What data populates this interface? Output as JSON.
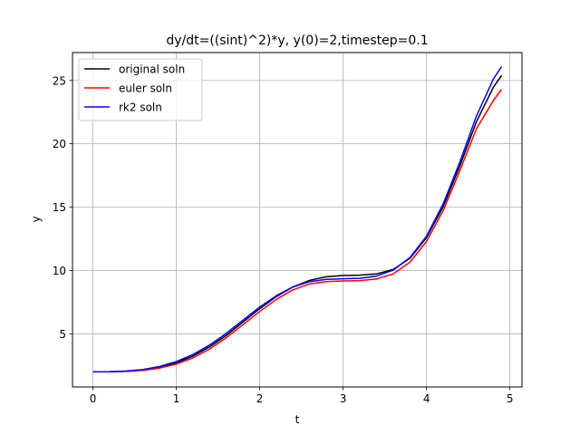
{
  "chart_data": {
    "type": "line",
    "title": "dy/dt=((sint)^2)*y, y(0)=2,timestep=0.1",
    "xlabel": "t",
    "ylabel": "y",
    "xlim": [
      -0.245,
      5.145
    ],
    "ylim": [
      0.8,
      27.2
    ],
    "xticks": [
      0,
      1,
      2,
      3,
      4,
      5
    ],
    "yticks": [
      5,
      10,
      15,
      20,
      25
    ],
    "grid": true,
    "legend_position": "top-left",
    "series": [
      {
        "name": "original soln",
        "color": "#000000",
        "x": [
          0,
          0.2,
          0.4,
          0.6,
          0.8,
          1.0,
          1.2,
          1.4,
          1.6,
          1.8,
          2.0,
          2.2,
          2.4,
          2.6,
          2.8,
          3.0,
          3.2,
          3.4,
          3.6,
          3.8,
          4.0,
          4.2,
          4.4,
          4.6,
          4.8,
          4.9
        ],
        "values": [
          2.0,
          2.0,
          2.04,
          2.14,
          2.36,
          2.71,
          3.24,
          3.97,
          4.88,
          5.93,
          6.98,
          7.94,
          8.7,
          9.22,
          9.5,
          9.6,
          9.63,
          9.72,
          10.07,
          10.95,
          12.58,
          15.04,
          18.25,
          21.75,
          24.45,
          25.4
        ]
      },
      {
        "name": "euler soln",
        "color": "#ff0000",
        "x": [
          0,
          0.2,
          0.4,
          0.6,
          0.8,
          1.0,
          1.2,
          1.4,
          1.6,
          1.8,
          2.0,
          2.2,
          2.4,
          2.6,
          2.8,
          3.0,
          3.2,
          3.4,
          3.6,
          3.8,
          4.0,
          4.2,
          4.4,
          4.6,
          4.8,
          4.9
        ],
        "values": [
          2.0,
          2.0,
          2.03,
          2.11,
          2.29,
          2.6,
          3.1,
          3.8,
          4.7,
          5.72,
          6.76,
          7.72,
          8.47,
          8.94,
          9.12,
          9.17,
          9.2,
          9.32,
          9.72,
          10.64,
          12.28,
          14.72,
          17.88,
          21.2,
          23.4,
          24.3
        ]
      },
      {
        "name": "rk2 soln",
        "color": "#0000ff",
        "x": [
          0,
          0.2,
          0.4,
          0.6,
          0.8,
          1.0,
          1.2,
          1.4,
          1.6,
          1.8,
          2.0,
          2.2,
          2.4,
          2.6,
          2.8,
          3.0,
          3.2,
          3.4,
          3.6,
          3.8,
          4.0,
          4.2,
          4.4,
          4.6,
          4.8,
          4.9
        ],
        "values": [
          2.0,
          2.01,
          2.06,
          2.18,
          2.42,
          2.8,
          3.36,
          4.11,
          5.04,
          6.08,
          7.1,
          8.01,
          8.7,
          9.12,
          9.3,
          9.34,
          9.38,
          9.55,
          10.02,
          11.0,
          12.7,
          15.25,
          18.55,
          22.2,
          25.1,
          26.1
        ]
      }
    ]
  }
}
